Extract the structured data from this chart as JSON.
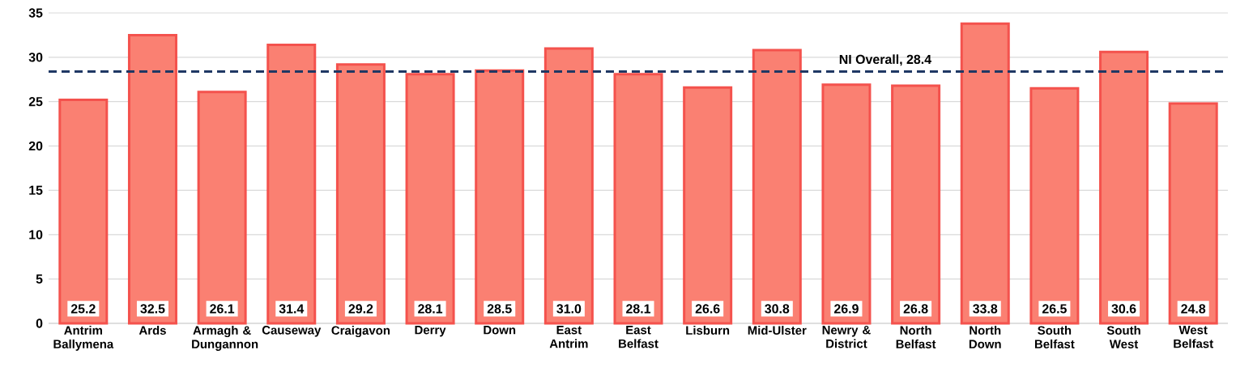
{
  "chart_data": {
    "type": "bar",
    "categories": [
      "Antrim Ballymena",
      "Ards",
      "Armagh & Dungannon",
      "Causeway",
      "Craigavon",
      "Derry",
      "Down",
      "East Antrim",
      "East Belfast",
      "Lisburn",
      "Mid-Ulster",
      "Newry & District",
      "North Belfast",
      "North Down",
      "South Belfast",
      "South West",
      "West Belfast"
    ],
    "values": [
      25.2,
      32.5,
      26.1,
      31.4,
      29.2,
      28.1,
      28.5,
      31.0,
      28.1,
      26.6,
      30.8,
      26.9,
      26.8,
      33.8,
      26.5,
      30.6,
      24.8
    ],
    "value_labels": [
      "25.2",
      "32.5",
      "26.1",
      "31.4",
      "29.2",
      "28.1",
      "28.5",
      "31.0",
      "28.1",
      "26.6",
      "30.8",
      "26.9",
      "26.8",
      "33.8",
      "26.5",
      "30.6",
      "24.8"
    ],
    "color": "#FA8072",
    "ylim": [
      0,
      35
    ],
    "yticks": [
      0,
      5,
      10,
      15,
      20,
      25,
      30,
      35
    ],
    "grid": "y",
    "ref_lines": [
      {
        "axis": "y",
        "value": 28.4,
        "label": "NI Overall, 28.4",
        "color": "#1F3864",
        "line_style": "dashed"
      }
    ]
  }
}
